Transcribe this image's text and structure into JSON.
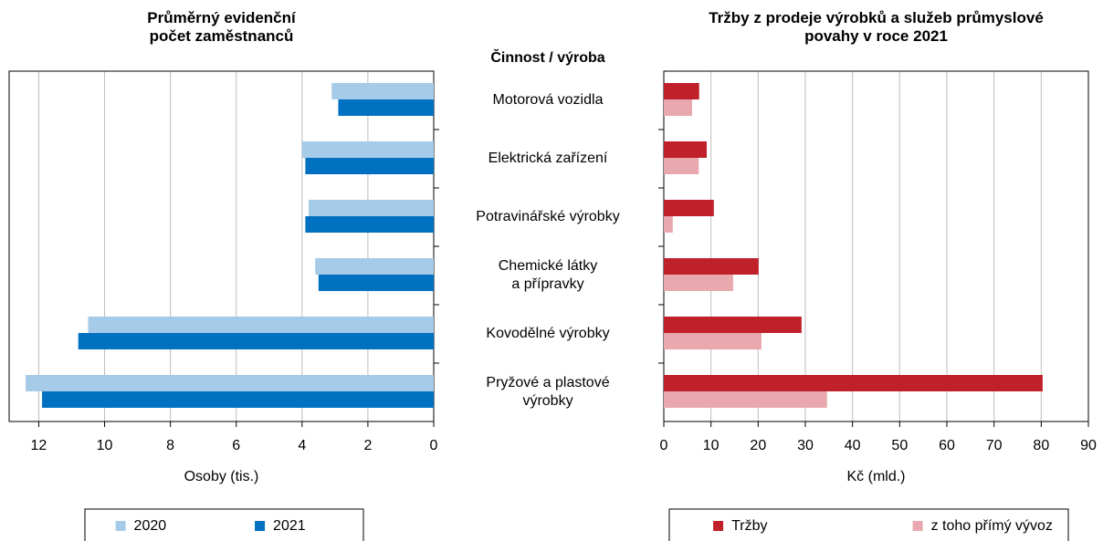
{
  "category_header": "Činnost / výroba",
  "categories": [
    "Motorová vozidla",
    "Elektrická zařízení",
    "Potravinářské výrobky",
    "Chemické látky\na přípravky",
    "Kovodělné výrobky",
    "Pryžové a plastové\nvýrobky"
  ],
  "chart_data": [
    {
      "type": "bar",
      "orientation": "horizontal",
      "title": "Průměrný evidenční\npočet zaměstnanců",
      "xlabel": "Osoby (tis.)",
      "x_reversed": true,
      "xlim": [
        0,
        12.9
      ],
      "xticks": [
        0,
        2,
        4,
        6,
        8,
        10,
        12
      ],
      "grid": true,
      "series": [
        {
          "name": "2020",
          "color": "#a6cbe8",
          "values": [
            3.1,
            4.0,
            3.8,
            3.6,
            10.5,
            12.4
          ]
        },
        {
          "name": "2021",
          "color": "#0070c0",
          "values": [
            2.9,
            3.9,
            3.9,
            3.5,
            10.8,
            11.9
          ]
        }
      ]
    },
    {
      "type": "bar",
      "orientation": "horizontal",
      "title": "Tržby z prodeje výrobků a služeb průmyslové\npovahy v roce 2021",
      "xlabel": "Kč (mld.)",
      "x_reversed": false,
      "xlim": [
        0,
        90
      ],
      "xticks": [
        0,
        10,
        20,
        30,
        40,
        50,
        60,
        70,
        80,
        90
      ],
      "grid": true,
      "series": [
        {
          "name": "Tržby",
          "color": "#c0202a",
          "values": [
            7.5,
            9.1,
            10.6,
            20.1,
            29.2,
            80.3
          ]
        },
        {
          "name": "z toho přímý vývoz",
          "color": "#e8a8ae",
          "values": [
            6.0,
            7.4,
            1.9,
            14.7,
            20.7,
            34.6
          ]
        }
      ]
    }
  ]
}
